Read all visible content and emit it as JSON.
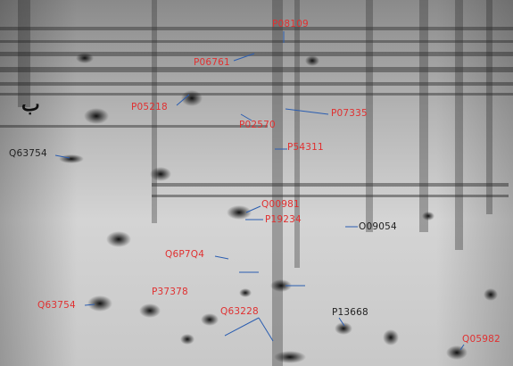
{
  "corner_mark": {
    "text": "ب",
    "color": "#111111"
  },
  "labels": [
    {
      "text": "P08109",
      "color": "#e03030"
    },
    {
      "text": "P06761",
      "color": "#e03030"
    },
    {
      "text": "P05218",
      "color": "#e03030"
    },
    {
      "text": "P02570",
      "color": "#e03030"
    },
    {
      "text": "P07335",
      "color": "#e03030"
    },
    {
      "text": "Q63754",
      "color": "#222222"
    },
    {
      "text": "P54311",
      "color": "#e03030"
    },
    {
      "text": "Q00981",
      "color": "#e03030"
    },
    {
      "text": "P19234",
      "color": "#e03030"
    },
    {
      "text": "O09054",
      "color": "#222222"
    },
    {
      "text": "Q6P7Q4",
      "color": "#e03030"
    },
    {
      "text": "P37378",
      "color": "#e03030"
    },
    {
      "text": "Q63754",
      "color": "#e03030"
    },
    {
      "text": "Q63228",
      "color": "#e03030"
    },
    {
      "text": "P13668",
      "color": "#222222"
    },
    {
      "text": "Q05982",
      "color": "#e03030"
    }
  ]
}
